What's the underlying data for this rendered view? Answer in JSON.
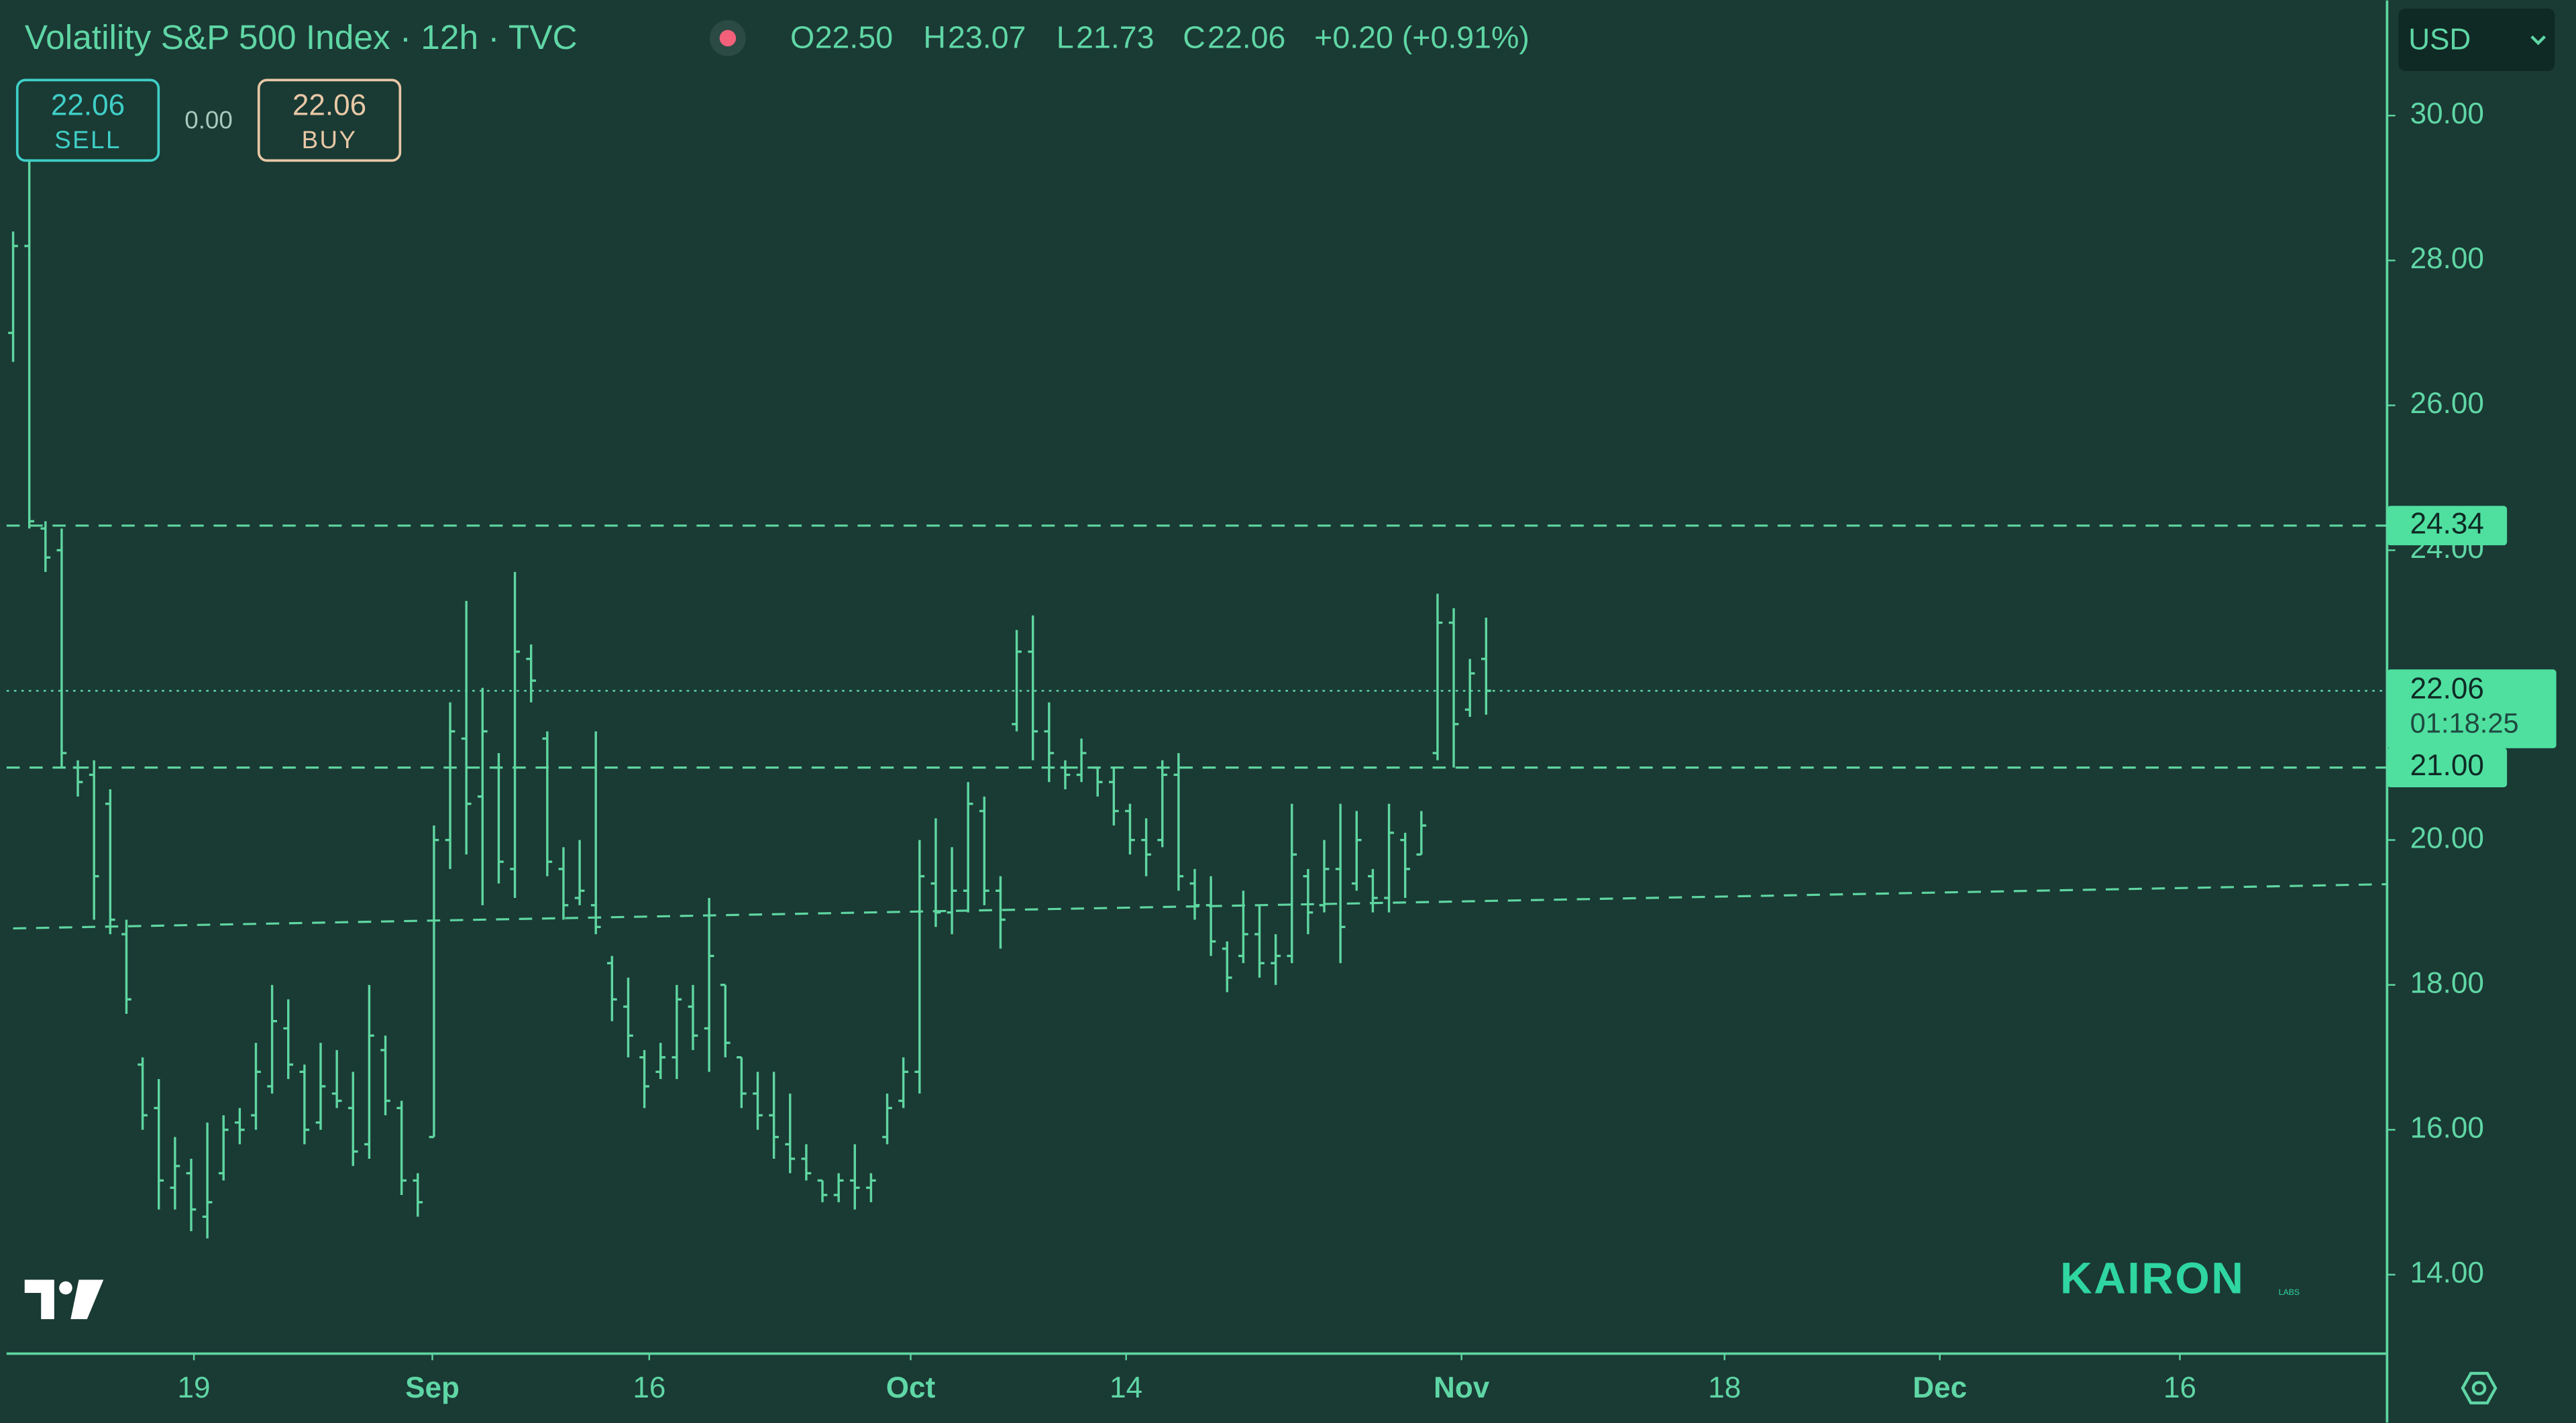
{
  "chart_data": {
    "type": "ohlc",
    "title": "Volatility S&P 500 Index · 12h · TVC",
    "header": [
      {
        "key": "O",
        "value": "22.50"
      },
      {
        "key": "H",
        "value": "23.07"
      },
      {
        "key": "L",
        "value": "21.73"
      },
      {
        "key": "C",
        "value": "22.06"
      }
    ],
    "change": "+0.20 (+0.91%)",
    "sell": {
      "price": "22.06",
      "label": "SELL"
    },
    "spread": "0.00",
    "buy": {
      "price": "22.06",
      "label": "BUY"
    },
    "currency": "USD",
    "watermark": "KAIRON",
    "watermark_sub": "LABS",
    "color": "#5ed6a0",
    "open": [
      27.0,
      28.2,
      24.3,
      24.0,
      21.0,
      20.9,
      20.5,
      18.7,
      16.9,
      16.3,
      15.2,
      15.4,
      14.8,
      15.4,
      16.1,
      16.2,
      16.6,
      17.4,
      16.8,
      16.1,
      16.5,
      16.3,
      15.8,
      17.1,
      16.3,
      15.3,
      15.9,
      20.0,
      21.4,
      20.6,
      21.0,
      19.6,
      22.5,
      21.4,
      19.6,
      19.2,
      19.1,
      18.3,
      17.7,
      17.0,
      16.8,
      17.0,
      17.7,
      17.4,
      18.0,
      17.0,
      16.5,
      16.2,
      15.8,
      15.6,
      15.3,
      15.1,
      15.3,
      15.2,
      15.9,
      16.4,
      16.8,
      19.4,
      19.0,
      19.3,
      20.4,
      19.3,
      21.6,
      22.6,
      21.5,
      21.0,
      20.9,
      21.0,
      20.8,
      20.4,
      20.0,
      20.0,
      20.9,
      19.4,
      19.1,
      18.5,
      18.4,
      18.7,
      18.3,
      18.4,
      19.5,
      19.1,
      19.6,
      19.4,
      19.5,
      19.2,
      20.0,
      19.8,
      21.2,
      23.0,
      21.8,
      22.5
    ],
    "high": [
      28.4,
      29.7,
      24.4,
      24.3,
      21.1,
      21.1,
      20.7,
      18.9,
      17.0,
      16.7,
      15.9,
      15.6,
      16.1,
      16.2,
      16.3,
      17.2,
      18.0,
      17.8,
      16.9,
      17.2,
      17.1,
      16.8,
      18.0,
      17.3,
      16.4,
      15.4,
      20.2,
      21.9,
      23.3,
      22.1,
      21.2,
      23.7,
      22.7,
      21.5,
      19.9,
      20.0,
      21.5,
      18.4,
      18.1,
      17.1,
      17.2,
      18.0,
      18.0,
      19.2,
      18.0,
      17.0,
      16.8,
      16.8,
      16.5,
      15.8,
      15.3,
      15.4,
      15.8,
      15.4,
      16.5,
      17.0,
      20.0,
      20.3,
      19.9,
      20.8,
      20.6,
      19.5,
      22.9,
      23.1,
      21.9,
      21.1,
      21.4,
      21.0,
      21.0,
      20.5,
      20.3,
      21.1,
      21.2,
      19.6,
      19.5,
      18.6,
      19.3,
      19.1,
      18.7,
      20.5,
      19.6,
      20.0,
      20.5,
      20.4,
      19.6,
      20.5,
      20.1,
      20.4,
      23.4,
      23.2,
      22.5,
      23.07
    ],
    "low": [
      26.6,
      24.3,
      23.7,
      21.0,
      20.6,
      18.9,
      18.7,
      17.6,
      16.0,
      14.9,
      14.9,
      14.6,
      14.5,
      15.3,
      15.8,
      16.0,
      16.5,
      16.7,
      15.8,
      16.0,
      16.3,
      15.5,
      15.6,
      16.2,
      15.1,
      14.8,
      15.9,
      19.6,
      19.8,
      19.1,
      19.4,
      19.2,
      21.9,
      19.5,
      18.9,
      19.1,
      18.7,
      17.5,
      17.0,
      16.3,
      16.7,
      16.7,
      17.1,
      16.8,
      17.0,
      16.3,
      16.0,
      15.6,
      15.4,
      15.3,
      15.0,
      15.0,
      14.9,
      15.0,
      15.8,
      16.3,
      16.5,
      18.8,
      18.7,
      19.0,
      19.1,
      18.5,
      21.5,
      21.1,
      20.8,
      20.7,
      20.8,
      20.6,
      20.2,
      19.8,
      19.5,
      19.9,
      19.3,
      18.9,
      18.4,
      17.9,
      18.3,
      18.1,
      18.0,
      18.3,
      18.7,
      19.0,
      18.3,
      19.3,
      19.0,
      19.0,
      19.2,
      19.8,
      21.1,
      21.0,
      21.7,
      21.73
    ],
    "close": [
      28.2,
      24.4,
      23.9,
      21.2,
      20.8,
      19.5,
      18.9,
      17.8,
      16.2,
      15.3,
      15.5,
      14.9,
      15.0,
      16.0,
      16.0,
      16.8,
      17.5,
      16.9,
      16.0,
      16.6,
      16.4,
      15.7,
      17.3,
      16.4,
      15.3,
      15.0,
      20.0,
      21.5,
      20.5,
      21.5,
      19.7,
      22.6,
      22.2,
      19.7,
      19.1,
      19.3,
      18.8,
      17.8,
      17.3,
      16.6,
      17.0,
      17.8,
      17.3,
      18.4,
      17.2,
      16.5,
      16.2,
      15.9,
      15.6,
      15.4,
      15.1,
      15.3,
      15.2,
      15.3,
      16.3,
      16.8,
      19.5,
      19.0,
      19.3,
      20.5,
      19.3,
      18.9,
      22.6,
      21.5,
      21.2,
      20.9,
      21.2,
      20.8,
      20.4,
      20.0,
      19.8,
      20.9,
      19.5,
      19.1,
      18.6,
      18.1,
      18.7,
      18.3,
      18.4,
      19.8,
      19.0,
      19.6,
      18.8,
      20.0,
      19.2,
      20.1,
      19.6,
      20.2,
      23.0,
      21.6,
      22.3,
      22.06
    ],
    "xlim": [
      -0.81,
      146.66
    ],
    "xticks": [
      {
        "value": 11.17,
        "label": "19"
      },
      {
        "value": 25.9,
        "label": "Sep"
      },
      {
        "value": 39.3,
        "label": "16"
      },
      {
        "value": 55.45,
        "label": "Oct"
      },
      {
        "value": 68.76,
        "label": "14"
      },
      {
        "value": 89.48,
        "label": "Nov"
      },
      {
        "value": 105.73,
        "label": "18"
      },
      {
        "value": 119.03,
        "label": "Dec"
      },
      {
        "value": 133.86,
        "label": "16"
      }
    ],
    "ylim": [
      12.91,
      31.59
    ],
    "yticks": [
      {
        "value": 14,
        "label": "14.00"
      },
      {
        "value": 16,
        "label": "16.00"
      },
      {
        "value": 18,
        "label": "18.00"
      },
      {
        "value": 20,
        "label": "20.00"
      },
      {
        "value": 22,
        "label": "22.00"
      },
      {
        "value": 24,
        "label": "24.00"
      },
      {
        "value": 26,
        "label": "26.00"
      },
      {
        "value": 28,
        "label": "28.00"
      },
      {
        "value": 30,
        "label": "30.00"
      }
    ],
    "levels": [
      {
        "value": 24.34,
        "label": "24.34"
      },
      {
        "value": 21,
        "label": "21.00"
      }
    ],
    "last_price": {
      "value": 22.06,
      "label": "22.06",
      "countdown": "01:18:25"
    },
    "trendline": {
      "x": [
        0,
        146.66
      ],
      "y": [
        18.78,
        19.39
      ]
    }
  }
}
